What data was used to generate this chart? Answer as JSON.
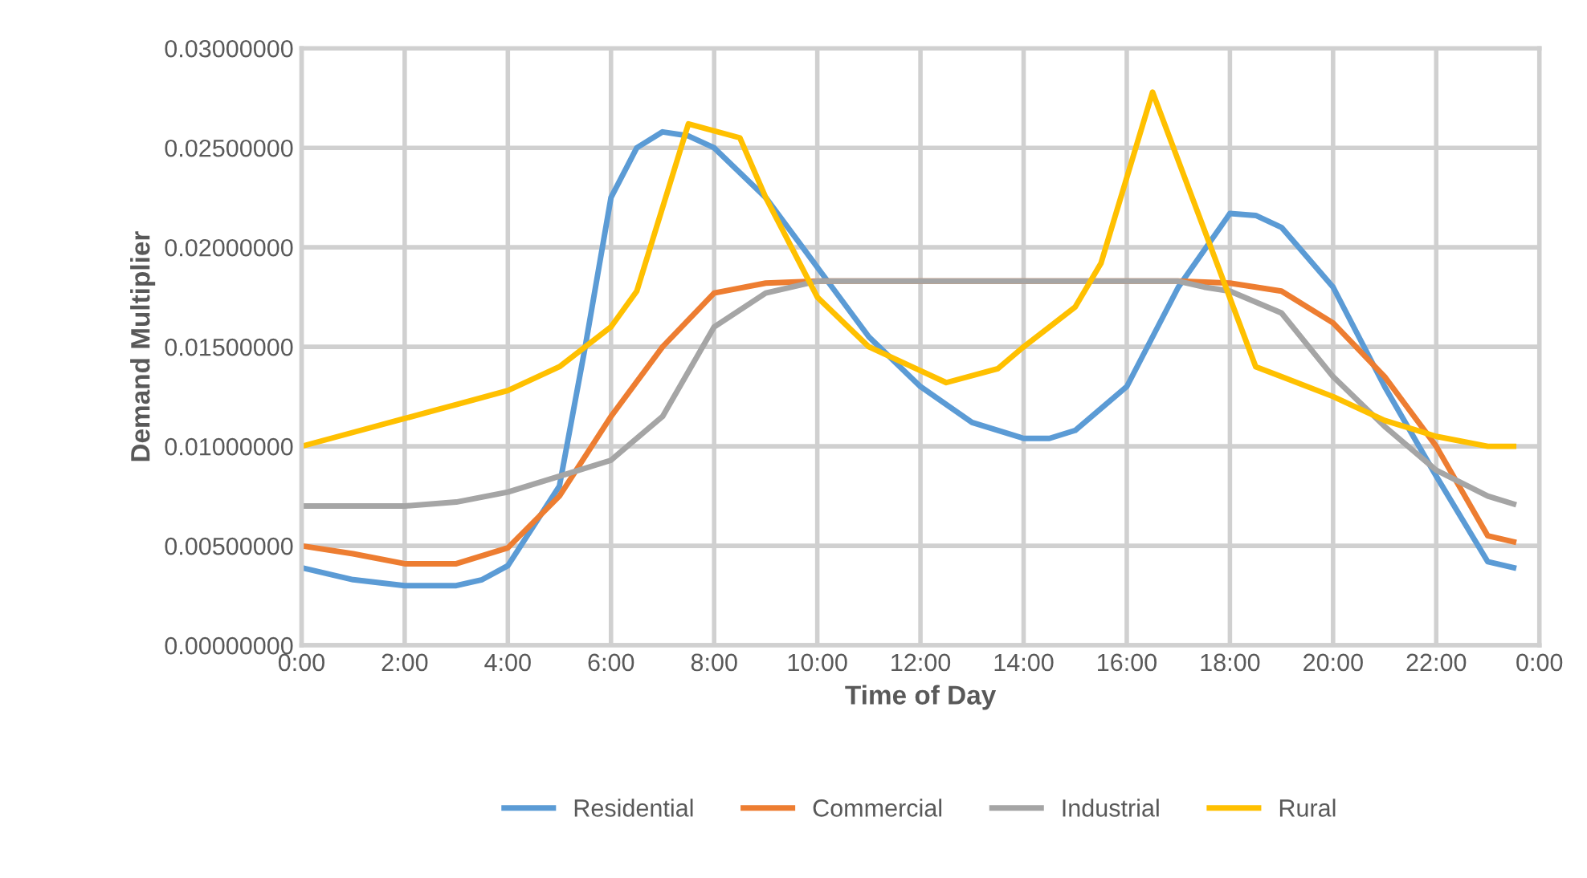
{
  "chart_data": {
    "type": "line",
    "xlabel": "Time of Day",
    "ylabel": "Demand Multiplier",
    "xlim": [
      0,
      24
    ],
    "xticks": [
      {
        "value": 0,
        "label": "0:00"
      },
      {
        "value": 2,
        "label": "2:00"
      },
      {
        "value": 4,
        "label": "4:00"
      },
      {
        "value": 6,
        "label": "6:00"
      },
      {
        "value": 8,
        "label": "8:00"
      },
      {
        "value": 10,
        "label": "10:00"
      },
      {
        "value": 12,
        "label": "12:00"
      },
      {
        "value": 14,
        "label": "14:00"
      },
      {
        "value": 16,
        "label": "16:00"
      },
      {
        "value": 18,
        "label": "18:00"
      },
      {
        "value": 20,
        "label": "20:00"
      },
      {
        "value": 22,
        "label": "22:00"
      },
      {
        "value": 24,
        "label": "0:00"
      }
    ],
    "ylim": [
      0,
      0.03
    ],
    "yticks": [
      {
        "value": 0,
        "label": "0.00000000"
      },
      {
        "value": 0.005,
        "label": "0.00500000"
      },
      {
        "value": 0.01,
        "label": "0.01000000"
      },
      {
        "value": 0.015,
        "label": "0.01500000"
      },
      {
        "value": 0.02,
        "label": "0.02000000"
      },
      {
        "value": 0.025,
        "label": "0.02500000"
      },
      {
        "value": 0.03,
        "label": "0.03000000"
      }
    ],
    "grid": true,
    "legend": "bottom",
    "marker": "none",
    "line_style": "solid",
    "series": [
      {
        "name": "Residential",
        "color": "#5b9bd5",
        "x": [
          0,
          1,
          2,
          3,
          3.5,
          4,
          5,
          5.5,
          6,
          6.5,
          7,
          7.5,
          8,
          9,
          10,
          11,
          12,
          13,
          14,
          14.5,
          15,
          16,
          17,
          18,
          18.5,
          19,
          20,
          21,
          22,
          23,
          23.5
        ],
        "values": [
          0.0039,
          0.0033,
          0.003,
          0.003,
          0.0033,
          0.004,
          0.008,
          0.015,
          0.0225,
          0.025,
          0.0258,
          0.0256,
          0.025,
          0.0225,
          0.019,
          0.0155,
          0.013,
          0.0112,
          0.0104,
          0.0104,
          0.0108,
          0.013,
          0.018,
          0.0217,
          0.0216,
          0.021,
          0.018,
          0.013,
          0.0085,
          0.0042,
          0.0039
        ]
      },
      {
        "name": "Commercial",
        "color": "#ed7d31",
        "x": [
          0,
          1,
          2,
          3,
          4,
          5,
          6,
          7,
          8,
          9,
          10,
          11,
          12,
          13,
          14,
          15,
          16,
          17,
          18,
          19,
          20,
          21,
          22,
          23,
          23.5
        ],
        "values": [
          0.005,
          0.0046,
          0.0041,
          0.0041,
          0.0049,
          0.0075,
          0.0115,
          0.015,
          0.0177,
          0.0182,
          0.0183,
          0.0183,
          0.0183,
          0.0183,
          0.0183,
          0.0183,
          0.0183,
          0.0183,
          0.0182,
          0.0178,
          0.0162,
          0.0135,
          0.01,
          0.0055,
          0.0052
        ]
      },
      {
        "name": "Industrial",
        "color": "#a5a5a5",
        "x": [
          0,
          1,
          2,
          3,
          4,
          5,
          6,
          7,
          8,
          9,
          10,
          11,
          12,
          13,
          14,
          15,
          16,
          17,
          17.5,
          18,
          19,
          20,
          21,
          22,
          23,
          23.5
        ],
        "values": [
          0.007,
          0.007,
          0.007,
          0.0072,
          0.0077,
          0.0085,
          0.0093,
          0.0115,
          0.016,
          0.0177,
          0.0183,
          0.0183,
          0.0183,
          0.0183,
          0.0183,
          0.0183,
          0.0183,
          0.0183,
          0.018,
          0.0178,
          0.0167,
          0.0135,
          0.011,
          0.0088,
          0.0075,
          0.0071
        ]
      },
      {
        "name": "Rural",
        "color": "#ffc000",
        "x": [
          0,
          1,
          2,
          3,
          4,
          5,
          6,
          6.5,
          7.5,
          8.5,
          9,
          10,
          11,
          12,
          12.5,
          13.5,
          14,
          15,
          15.5,
          16.5,
          18.5,
          19,
          20,
          21,
          22,
          23,
          23.5
        ],
        "values": [
          0.01,
          0.0107,
          0.0114,
          0.0121,
          0.0128,
          0.014,
          0.016,
          0.0178,
          0.0262,
          0.0255,
          0.0225,
          0.0175,
          0.015,
          0.0138,
          0.0132,
          0.0139,
          0.015,
          0.017,
          0.0192,
          0.0278,
          0.014,
          0.0135,
          0.0125,
          0.0113,
          0.0105,
          0.01,
          0.01
        ]
      }
    ]
  }
}
